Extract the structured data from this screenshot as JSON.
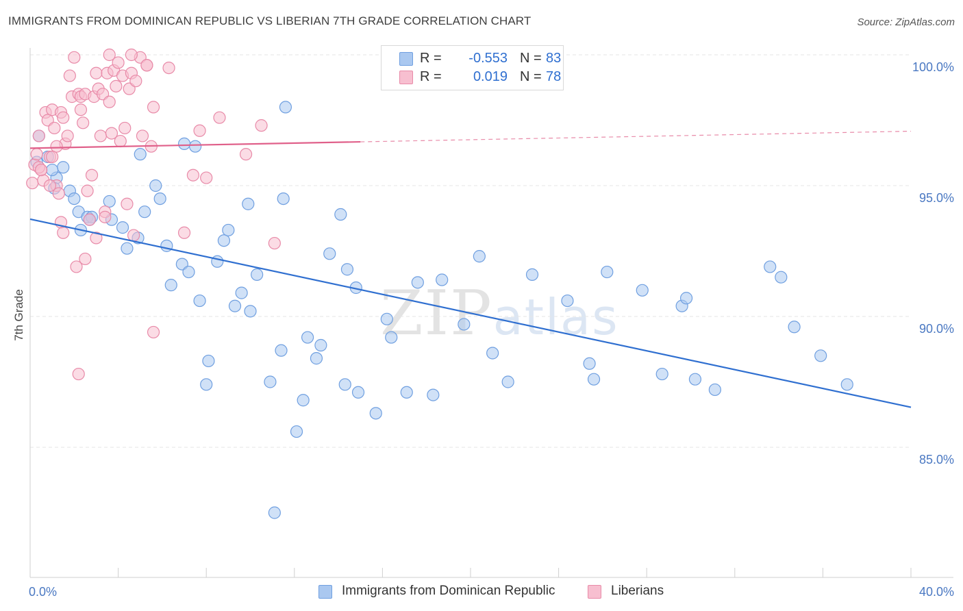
{
  "header": {
    "title": "IMMIGRANTS FROM DOMINICAN REPUBLIC VS LIBERIAN 7TH GRADE CORRELATION CHART",
    "source": "Source: ZipAtlas.com"
  },
  "watermark": {
    "zip": "ZIP",
    "atlas": "atlas"
  },
  "legend": {
    "rows": [
      {
        "r_label": "R =",
        "r_value": "-0.553",
        "n_label": "N =",
        "n_value": "83",
        "color": "#aac8f0",
        "stroke": "#6f9fe0"
      },
      {
        "r_label": "R =",
        "r_value": "0.019",
        "n_label": "N =",
        "n_value": "78",
        "color": "#f7bfd0",
        "stroke": "#e88aa8"
      }
    ]
  },
  "bottom_legend": [
    {
      "label": "Immigrants from Dominican Republic",
      "color": "#aac8f0",
      "stroke": "#6f9fe0"
    },
    {
      "label": "Liberians",
      "color": "#f7bfd0",
      "stroke": "#e88aa8"
    }
  ],
  "chart_data": {
    "type": "scatter",
    "xlabel": "",
    "ylabel": "7th Grade",
    "xlim": [
      0,
      40
    ],
    "ylim": [
      80.5,
      100.7
    ],
    "x_tick_labels": [
      "0.0%",
      "40.0%"
    ],
    "y_ticks": [
      85,
      90,
      95,
      100
    ],
    "y_tick_labels": [
      "85.0%",
      "90.0%",
      "95.0%",
      "100.0%"
    ],
    "grid": true,
    "series": [
      {
        "name": "Immigrants from Dominican Republic",
        "color": "#6f9fe0",
        "fill": "#aac8f0",
        "trend": {
          "x": [
            0,
            40
          ],
          "y": [
            93.72,
            86.53
          ],
          "dashed_from": null
        },
        "points": [
          [
            0.4,
            96.9
          ],
          [
            0.3,
            95.9
          ],
          [
            1.5,
            95.7
          ],
          [
            1.2,
            95.3
          ],
          [
            0.8,
            96.1
          ],
          [
            1.8,
            94.8
          ],
          [
            2.0,
            94.5
          ],
          [
            2.3,
            93.3
          ],
          [
            2.2,
            94.0
          ],
          [
            2.6,
            93.8
          ],
          [
            2.8,
            93.8
          ],
          [
            3.6,
            94.4
          ],
          [
            3.7,
            93.7
          ],
          [
            4.2,
            93.4
          ],
          [
            4.4,
            92.6
          ],
          [
            4.9,
            93.0
          ],
          [
            5.0,
            96.2
          ],
          [
            5.2,
            94.0
          ],
          [
            5.7,
            95.0
          ],
          [
            5.9,
            94.5
          ],
          [
            6.2,
            92.7
          ],
          [
            6.4,
            91.2
          ],
          [
            6.9,
            92.0
          ],
          [
            7.2,
            91.7
          ],
          [
            7.0,
            96.6
          ],
          [
            7.5,
            96.5
          ],
          [
            7.7,
            90.6
          ],
          [
            8.1,
            88.3
          ],
          [
            8.0,
            87.4
          ],
          [
            8.5,
            92.1
          ],
          [
            8.8,
            92.9
          ],
          [
            9.0,
            93.3
          ],
          [
            9.3,
            90.4
          ],
          [
            9.6,
            90.9
          ],
          [
            9.9,
            94.3
          ],
          [
            10.0,
            90.2
          ],
          [
            10.3,
            91.6
          ],
          [
            10.9,
            87.5
          ],
          [
            11.4,
            88.7
          ],
          [
            11.1,
            82.5
          ],
          [
            11.5,
            94.5
          ],
          [
            11.6,
            98.0
          ],
          [
            12.1,
            85.6
          ],
          [
            12.4,
            86.8
          ],
          [
            12.6,
            89.2
          ],
          [
            13.0,
            88.4
          ],
          [
            13.2,
            88.9
          ],
          [
            13.6,
            92.4
          ],
          [
            14.1,
            93.9
          ],
          [
            14.4,
            91.8
          ],
          [
            14.3,
            87.4
          ],
          [
            14.8,
            91.1
          ],
          [
            14.9,
            87.1
          ],
          [
            15.7,
            86.3
          ],
          [
            16.2,
            89.9
          ],
          [
            16.4,
            89.2
          ],
          [
            17.1,
            87.1
          ],
          [
            17.6,
            91.3
          ],
          [
            18.3,
            87.0
          ],
          [
            18.7,
            91.4
          ],
          [
            19.7,
            89.7
          ],
          [
            20.4,
            92.3
          ],
          [
            21.0,
            88.6
          ],
          [
            21.7,
            87.5
          ],
          [
            22.8,
            91.6
          ],
          [
            24.4,
            90.6
          ],
          [
            25.4,
            88.2
          ],
          [
            25.6,
            87.6
          ],
          [
            26.2,
            91.7
          ],
          [
            27.8,
            91.0
          ],
          [
            28.7,
            87.8
          ],
          [
            29.6,
            90.4
          ],
          [
            29.8,
            90.7
          ],
          [
            30.2,
            87.6
          ],
          [
            31.1,
            87.2
          ],
          [
            33.6,
            91.9
          ],
          [
            34.1,
            91.5
          ],
          [
            34.7,
            89.6
          ],
          [
            35.9,
            88.5
          ],
          [
            37.1,
            87.4
          ],
          [
            1.0,
            95.6
          ],
          [
            1.1,
            94.9
          ],
          [
            2.7,
            93.7
          ]
        ]
      },
      {
        "name": "Liberians",
        "color": "#e88aa8",
        "fill": "#f7bfd0",
        "trend": {
          "x": [
            0,
            40
          ],
          "y": [
            96.43,
            97.08
          ],
          "dashed_from": 15
        },
        "points": [
          [
            0.1,
            95.1
          ],
          [
            0.2,
            95.8
          ],
          [
            0.3,
            96.2
          ],
          [
            0.4,
            96.9
          ],
          [
            0.5,
            95.6
          ],
          [
            0.6,
            95.2
          ],
          [
            0.7,
            97.8
          ],
          [
            0.8,
            97.5
          ],
          [
            0.9,
            96.1
          ],
          [
            1.0,
            97.9
          ],
          [
            1.1,
            97.2
          ],
          [
            1.2,
            95.0
          ],
          [
            1.3,
            94.7
          ],
          [
            1.4,
            97.8
          ],
          [
            1.5,
            97.6
          ],
          [
            1.6,
            96.6
          ],
          [
            1.7,
            96.9
          ],
          [
            1.8,
            99.2
          ],
          [
            1.9,
            98.4
          ],
          [
            2.0,
            99.9
          ],
          [
            2.2,
            98.5
          ],
          [
            2.3,
            98.4
          ],
          [
            2.4,
            97.4
          ],
          [
            2.5,
            98.5
          ],
          [
            2.6,
            94.8
          ],
          [
            2.7,
            93.7
          ],
          [
            2.8,
            95.4
          ],
          [
            2.9,
            98.4
          ],
          [
            3.0,
            99.3
          ],
          [
            3.1,
            98.7
          ],
          [
            3.2,
            96.9
          ],
          [
            3.3,
            98.5
          ],
          [
            3.4,
            94.0
          ],
          [
            3.5,
            99.3
          ],
          [
            3.6,
            98.2
          ],
          [
            3.7,
            97.0
          ],
          [
            3.8,
            99.4
          ],
          [
            3.9,
            98.8
          ],
          [
            4.0,
            99.7
          ],
          [
            4.1,
            96.7
          ],
          [
            4.2,
            99.2
          ],
          [
            4.3,
            97.2
          ],
          [
            4.4,
            94.3
          ],
          [
            4.5,
            98.7
          ],
          [
            4.6,
            99.3
          ],
          [
            4.7,
            93.1
          ],
          [
            4.8,
            99.0
          ],
          [
            5.0,
            99.9
          ],
          [
            5.1,
            96.9
          ],
          [
            5.3,
            99.6
          ],
          [
            5.5,
            96.5
          ],
          [
            5.6,
            98.0
          ],
          [
            6.3,
            99.5
          ],
          [
            7.0,
            93.2
          ],
          [
            7.4,
            95.4
          ],
          [
            7.7,
            97.1
          ],
          [
            8.0,
            95.3
          ],
          [
            8.6,
            97.6
          ],
          [
            9.8,
            96.2
          ],
          [
            10.5,
            97.3
          ],
          [
            11.1,
            92.8
          ],
          [
            1.4,
            93.6
          ],
          [
            1.5,
            93.2
          ],
          [
            2.1,
            91.9
          ],
          [
            2.5,
            92.2
          ],
          [
            3.0,
            93.0
          ],
          [
            3.4,
            93.8
          ],
          [
            5.6,
            89.4
          ],
          [
            2.2,
            87.8
          ],
          [
            0.4,
            95.7
          ],
          [
            0.5,
            95.6
          ],
          [
            0.9,
            95.0
          ],
          [
            1.2,
            96.5
          ],
          [
            3.6,
            100.0
          ],
          [
            4.6,
            100.0
          ],
          [
            5.3,
            99.6
          ],
          [
            2.3,
            97.9
          ],
          [
            1.0,
            96.1
          ]
        ]
      }
    ]
  }
}
